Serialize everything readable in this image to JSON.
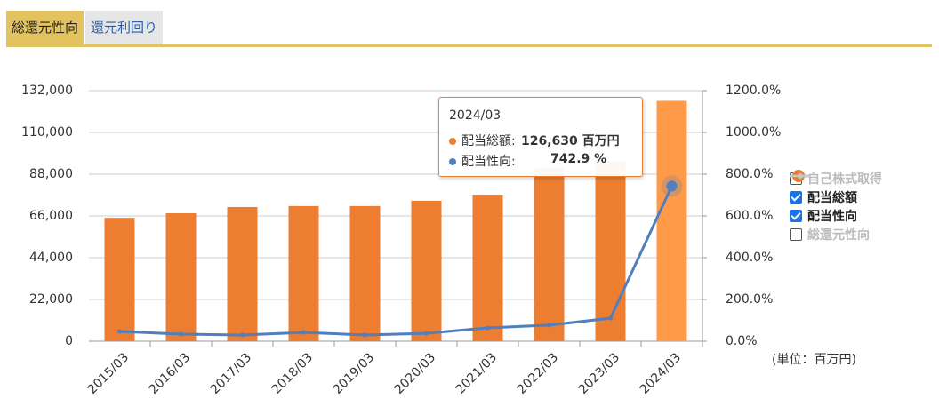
{
  "tabs": [
    "総還元性向",
    "還元利回り"
  ],
  "chart_data": {
    "type": "bar",
    "categories": [
      "2015/03",
      "2016/03",
      "2017/03",
      "2018/03",
      "2019/03",
      "2020/03",
      "2021/03",
      "2022/03",
      "2023/03",
      "2024/03"
    ],
    "series": [
      {
        "name": "自己株式取得",
        "color": "#c8c8c8",
        "visible": false,
        "marker": "circle"
      },
      {
        "name": "配当総額",
        "color": "#ed7d31",
        "highlight_color": "#ff9a48",
        "visible": true,
        "marker": "circle",
        "values": [
          65000,
          67400,
          70700,
          71200,
          71200,
          74000,
          77200,
          91300,
          95000,
          126630
        ]
      },
      {
        "name": "配当性向",
        "color": "#4f7fbc",
        "visible": true,
        "type": "line",
        "axis": "y2",
        "marker": "line",
        "values": [
          47,
          34,
          30,
          42,
          30,
          38,
          64,
          77,
          110,
          742.9
        ]
      },
      {
        "name": "総還元性向",
        "color": "#c8c8c8",
        "visible": false,
        "marker": "line"
      }
    ],
    "ylim": [
      0,
      132000
    ],
    "yticks": [
      0,
      {
        "value": 22000,
        "label": "22,000"
      },
      {
        "value": 44000,
        "label": "44,000"
      },
      {
        "value": 66000,
        "label": "66,000"
      },
      {
        "value": 88000,
        "label": "88,000"
      },
      {
        "value": 110000,
        "label": "110,000"
      },
      {
        "value": 132000,
        "label": "132,000"
      }
    ],
    "y2lim": [
      0,
      1200
    ],
    "y2ticks": [
      {
        "value": 0,
        "label": "0.0%"
      },
      {
        "value": 200,
        "label": "200.0%"
      },
      {
        "value": 400,
        "label": "400.0%"
      },
      {
        "value": 600,
        "label": "600.0%"
      },
      {
        "value": 800,
        "label": "800.0%"
      },
      {
        "value": 1000,
        "label": "1000.0%"
      },
      {
        "value": 1200,
        "label": "1200.0%"
      }
    ],
    "grid": true,
    "unit_note": "(単位：百万円)",
    "tooltip": {
      "index": 9,
      "items": [
        {
          "label": "配当総額:",
          "value": "126,630 百万円"
        },
        {
          "label": "配当性向:",
          "value": "742.9 %"
        }
      ]
    }
  }
}
